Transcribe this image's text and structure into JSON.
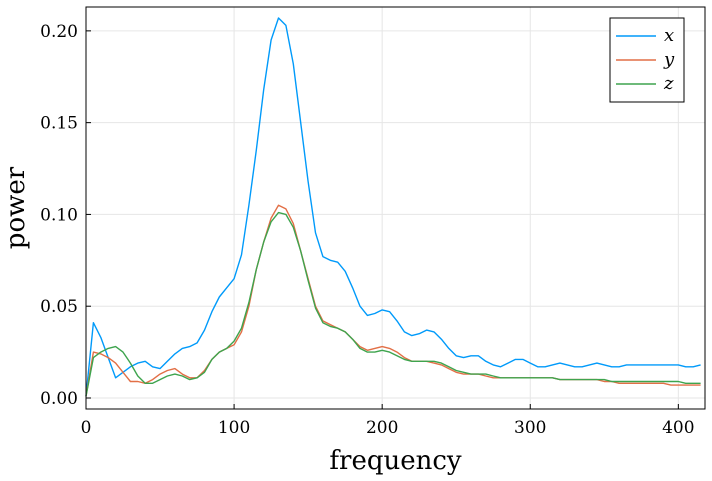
{
  "chart_data": {
    "type": "line",
    "title": "",
    "xlabel": "frequency",
    "ylabel": "power",
    "xlim": [
      0,
      418
    ],
    "ylim": [
      -0.006,
      0.213
    ],
    "xticks": [
      0,
      100,
      200,
      300,
      400
    ],
    "xtick_labels": [
      "0",
      "100",
      "200",
      "300",
      "400"
    ],
    "yticks": [
      0.0,
      0.05,
      0.1,
      0.15,
      0.2
    ],
    "ytick_labels": [
      "0.00",
      "0.05",
      "0.10",
      "0.15",
      "0.20"
    ],
    "grid": true,
    "legend_position": "top-right",
    "series": [
      {
        "name": "x",
        "color": "#009AFA",
        "points": [
          [
            0,
            0.001
          ],
          [
            5,
            0.041
          ],
          [
            10,
            0.033
          ],
          [
            15,
            0.022
          ],
          [
            20,
            0.011
          ],
          [
            25,
            0.014
          ],
          [
            30,
            0.017
          ],
          [
            35,
            0.019
          ],
          [
            40,
            0.02
          ],
          [
            45,
            0.017
          ],
          [
            50,
            0.016
          ],
          [
            55,
            0.02
          ],
          [
            60,
            0.024
          ],
          [
            65,
            0.027
          ],
          [
            70,
            0.028
          ],
          [
            75,
            0.03
          ],
          [
            80,
            0.037
          ],
          [
            85,
            0.047
          ],
          [
            90,
            0.055
          ],
          [
            95,
            0.06
          ],
          [
            100,
            0.065
          ],
          [
            105,
            0.078
          ],
          [
            110,
            0.105
          ],
          [
            115,
            0.135
          ],
          [
            120,
            0.168
          ],
          [
            125,
            0.195
          ],
          [
            130,
            0.207
          ],
          [
            135,
            0.203
          ],
          [
            140,
            0.182
          ],
          [
            145,
            0.15
          ],
          [
            150,
            0.118
          ],
          [
            155,
            0.09
          ],
          [
            160,
            0.077
          ],
          [
            165,
            0.075
          ],
          [
            170,
            0.074
          ],
          [
            175,
            0.069
          ],
          [
            180,
            0.06
          ],
          [
            185,
            0.05
          ],
          [
            190,
            0.045
          ],
          [
            195,
            0.046
          ],
          [
            200,
            0.048
          ],
          [
            205,
            0.047
          ],
          [
            210,
            0.042
          ],
          [
            215,
            0.036
          ],
          [
            220,
            0.034
          ],
          [
            225,
            0.035
          ],
          [
            230,
            0.037
          ],
          [
            235,
            0.036
          ],
          [
            240,
            0.032
          ],
          [
            245,
            0.027
          ],
          [
            250,
            0.023
          ],
          [
            255,
            0.022
          ],
          [
            260,
            0.023
          ],
          [
            265,
            0.023
          ],
          [
            270,
            0.02
          ],
          [
            275,
            0.018
          ],
          [
            280,
            0.017
          ],
          [
            285,
            0.019
          ],
          [
            290,
            0.021
          ],
          [
            295,
            0.021
          ],
          [
            300,
            0.019
          ],
          [
            305,
            0.017
          ],
          [
            310,
            0.017
          ],
          [
            315,
            0.018
          ],
          [
            320,
            0.019
          ],
          [
            325,
            0.018
          ],
          [
            330,
            0.017
          ],
          [
            335,
            0.017
          ],
          [
            340,
            0.018
          ],
          [
            345,
            0.019
          ],
          [
            350,
            0.018
          ],
          [
            355,
            0.017
          ],
          [
            360,
            0.017
          ],
          [
            365,
            0.018
          ],
          [
            370,
            0.018
          ],
          [
            375,
            0.018
          ],
          [
            380,
            0.018
          ],
          [
            385,
            0.018
          ],
          [
            390,
            0.018
          ],
          [
            395,
            0.018
          ],
          [
            400,
            0.018
          ],
          [
            405,
            0.017
          ],
          [
            410,
            0.017
          ],
          [
            415,
            0.018
          ]
        ]
      },
      {
        "name": "y",
        "color": "#E26F46",
        "points": [
          [
            0,
            0.001
          ],
          [
            5,
            0.025
          ],
          [
            10,
            0.024
          ],
          [
            15,
            0.022
          ],
          [
            20,
            0.019
          ],
          [
            25,
            0.014
          ],
          [
            30,
            0.009
          ],
          [
            35,
            0.009
          ],
          [
            40,
            0.008
          ],
          [
            45,
            0.01
          ],
          [
            50,
            0.013
          ],
          [
            55,
            0.015
          ],
          [
            60,
            0.016
          ],
          [
            65,
            0.013
          ],
          [
            70,
            0.011
          ],
          [
            75,
            0.011
          ],
          [
            80,
            0.015
          ],
          [
            85,
            0.021
          ],
          [
            90,
            0.025
          ],
          [
            95,
            0.027
          ],
          [
            100,
            0.029
          ],
          [
            105,
            0.036
          ],
          [
            110,
            0.05
          ],
          [
            115,
            0.07
          ],
          [
            120,
            0.085
          ],
          [
            125,
            0.098
          ],
          [
            130,
            0.105
          ],
          [
            135,
            0.103
          ],
          [
            140,
            0.095
          ],
          [
            145,
            0.08
          ],
          [
            150,
            0.065
          ],
          [
            155,
            0.05
          ],
          [
            160,
            0.042
          ],
          [
            165,
            0.04
          ],
          [
            170,
            0.038
          ],
          [
            175,
            0.036
          ],
          [
            180,
            0.032
          ],
          [
            185,
            0.028
          ],
          [
            190,
            0.026
          ],
          [
            195,
            0.027
          ],
          [
            200,
            0.028
          ],
          [
            205,
            0.027
          ],
          [
            210,
            0.025
          ],
          [
            215,
            0.022
          ],
          [
            220,
            0.02
          ],
          [
            225,
            0.02
          ],
          [
            230,
            0.02
          ],
          [
            235,
            0.019
          ],
          [
            240,
            0.018
          ],
          [
            245,
            0.016
          ],
          [
            250,
            0.014
          ],
          [
            255,
            0.013
          ],
          [
            260,
            0.013
          ],
          [
            265,
            0.013
          ],
          [
            270,
            0.012
          ],
          [
            275,
            0.011
          ],
          [
            280,
            0.011
          ],
          [
            285,
            0.011
          ],
          [
            290,
            0.011
          ],
          [
            295,
            0.011
          ],
          [
            300,
            0.011
          ],
          [
            305,
            0.011
          ],
          [
            310,
            0.011
          ],
          [
            315,
            0.011
          ],
          [
            320,
            0.01
          ],
          [
            325,
            0.01
          ],
          [
            330,
            0.01
          ],
          [
            335,
            0.01
          ],
          [
            340,
            0.01
          ],
          [
            345,
            0.01
          ],
          [
            350,
            0.009
          ],
          [
            355,
            0.009
          ],
          [
            360,
            0.008
          ],
          [
            365,
            0.008
          ],
          [
            370,
            0.008
          ],
          [
            375,
            0.008
          ],
          [
            380,
            0.008
          ],
          [
            385,
            0.008
          ],
          [
            390,
            0.008
          ],
          [
            395,
            0.007
          ],
          [
            400,
            0.007
          ],
          [
            405,
            0.007
          ],
          [
            410,
            0.007
          ],
          [
            415,
            0.007
          ]
        ]
      },
      {
        "name": "z",
        "color": "#3EA44E",
        "points": [
          [
            0,
            0.001
          ],
          [
            5,
            0.022
          ],
          [
            10,
            0.025
          ],
          [
            15,
            0.027
          ],
          [
            20,
            0.028
          ],
          [
            25,
            0.025
          ],
          [
            30,
            0.019
          ],
          [
            35,
            0.012
          ],
          [
            40,
            0.008
          ],
          [
            45,
            0.008
          ],
          [
            50,
            0.01
          ],
          [
            55,
            0.012
          ],
          [
            60,
            0.013
          ],
          [
            65,
            0.012
          ],
          [
            70,
            0.01
          ],
          [
            75,
            0.011
          ],
          [
            80,
            0.014
          ],
          [
            85,
            0.021
          ],
          [
            90,
            0.025
          ],
          [
            95,
            0.027
          ],
          [
            100,
            0.031
          ],
          [
            105,
            0.038
          ],
          [
            110,
            0.052
          ],
          [
            115,
            0.07
          ],
          [
            120,
            0.085
          ],
          [
            125,
            0.096
          ],
          [
            130,
            0.101
          ],
          [
            135,
            0.1
          ],
          [
            140,
            0.093
          ],
          [
            145,
            0.08
          ],
          [
            150,
            0.064
          ],
          [
            155,
            0.049
          ],
          [
            160,
            0.041
          ],
          [
            165,
            0.039
          ],
          [
            170,
            0.038
          ],
          [
            175,
            0.036
          ],
          [
            180,
            0.032
          ],
          [
            185,
            0.027
          ],
          [
            190,
            0.025
          ],
          [
            195,
            0.025
          ],
          [
            200,
            0.026
          ],
          [
            205,
            0.025
          ],
          [
            210,
            0.023
          ],
          [
            215,
            0.021
          ],
          [
            220,
            0.02
          ],
          [
            225,
            0.02
          ],
          [
            230,
            0.02
          ],
          [
            235,
            0.02
          ],
          [
            240,
            0.019
          ],
          [
            245,
            0.017
          ],
          [
            250,
            0.015
          ],
          [
            255,
            0.014
          ],
          [
            260,
            0.013
          ],
          [
            265,
            0.013
          ],
          [
            270,
            0.013
          ],
          [
            275,
            0.012
          ],
          [
            280,
            0.011
          ],
          [
            285,
            0.011
          ],
          [
            290,
            0.011
          ],
          [
            295,
            0.011
          ],
          [
            300,
            0.011
          ],
          [
            305,
            0.011
          ],
          [
            310,
            0.011
          ],
          [
            315,
            0.011
          ],
          [
            320,
            0.01
          ],
          [
            325,
            0.01
          ],
          [
            330,
            0.01
          ],
          [
            335,
            0.01
          ],
          [
            340,
            0.01
          ],
          [
            345,
            0.01
          ],
          [
            350,
            0.01
          ],
          [
            355,
            0.009
          ],
          [
            360,
            0.009
          ],
          [
            365,
            0.009
          ],
          [
            370,
            0.009
          ],
          [
            375,
            0.009
          ],
          [
            380,
            0.009
          ],
          [
            385,
            0.009
          ],
          [
            390,
            0.009
          ],
          [
            395,
            0.009
          ],
          [
            400,
            0.009
          ],
          [
            405,
            0.008
          ],
          [
            410,
            0.008
          ],
          [
            415,
            0.008
          ]
        ]
      }
    ]
  }
}
